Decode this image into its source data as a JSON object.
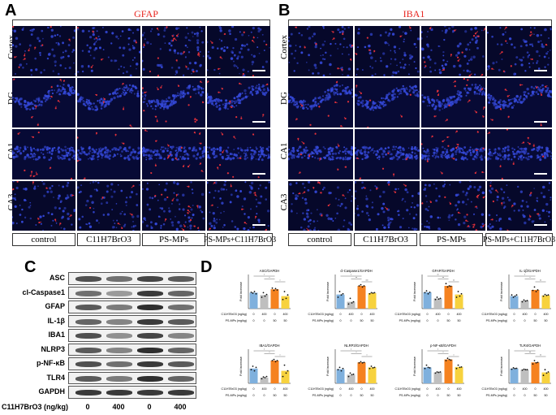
{
  "panels": {
    "a": {
      "letter": "A",
      "stain": "GFAP"
    },
    "b": {
      "letter": "B",
      "stain": "IBA1"
    },
    "c": {
      "letter": "C"
    },
    "d": {
      "letter": "D"
    }
  },
  "regions": [
    "Cortex",
    "DG",
    "CA1",
    "CA3"
  ],
  "groups": [
    "control",
    "C11H7BrO3",
    "PS-MPs",
    "PS-MPs+C11H7BrO3"
  ],
  "colors": {
    "control": "#7fb0dd",
    "c11": "#bfbfbf",
    "psmps": "#f58220",
    "combo": "#f7d23e",
    "nuclei": "#3448d8",
    "stain": "#e0303a"
  },
  "western_blot": {
    "proteins": [
      "ASC",
      "cl-Caspase1",
      "GFAP",
      "IL-1β",
      "IBA1",
      "NLRP3",
      "p-NF-κB",
      "TLR4",
      "GAPDH"
    ],
    "band_intensity": [
      [
        0.75,
        0.6,
        0.8,
        0.7
      ],
      [
        0.6,
        0.4,
        0.85,
        0.65
      ],
      [
        0.7,
        0.55,
        0.9,
        0.6
      ],
      [
        0.65,
        0.5,
        0.85,
        0.7
      ],
      [
        0.75,
        0.45,
        0.8,
        0.5
      ],
      [
        0.7,
        0.5,
        0.9,
        0.65
      ],
      [
        0.75,
        0.6,
        0.85,
        0.7
      ],
      [
        0.7,
        0.55,
        0.9,
        0.65
      ],
      [
        0.85,
        0.85,
        0.85,
        0.85
      ]
    ],
    "dose_rows": [
      {
        "label": "C11H7BrO3 (ng/kg)",
        "values": [
          "0",
          "400",
          "0",
          "400"
        ]
      },
      {
        "label": "PS-MPs (mg/kg)",
        "values": [
          "0",
          "0",
          "50",
          "50"
        ]
      }
    ]
  },
  "chart_data": [
    {
      "type": "bar",
      "title": "ASC/GAPDH",
      "ylabel": "Fold increase",
      "categories": [
        "control",
        "C11H7BrO3",
        "PS-MPs",
        "PS-MPs+C11H7BrO3"
      ],
      "values": [
        0.7,
        0.6,
        0.85,
        0.55
      ],
      "ylim": [
        0,
        1.5
      ],
      "points": [
        [
          0.72,
          0.68,
          0.75,
          0.65
        ],
        [
          0.5,
          0.7,
          0.55,
          0.62
        ],
        [
          0.9,
          0.8,
          0.88,
          0.82
        ],
        [
          0.4,
          0.75,
          0.45,
          0.6
        ]
      ],
      "sig": [
        "*",
        "*",
        "*"
      ]
    },
    {
      "type": "bar",
      "title": "cl-Caspase1/GAPDH",
      "ylabel": "Fold increase",
      "categories": [
        "control",
        "C11H7BrO3",
        "PS-MPs",
        "PS-MPs+C11H7BrO3"
      ],
      "values": [
        0.62,
        0.3,
        1.0,
        0.68
      ],
      "ylim": [
        0,
        1.5
      ],
      "points": [
        [
          0.5,
          0.75,
          0.6,
          0.65
        ],
        [
          0.2,
          0.45,
          0.25,
          0.3
        ],
        [
          1.0,
          1.05,
          0.95,
          1.0
        ],
        [
          0.65,
          0.7,
          0.68,
          0.7
        ]
      ],
      "sig": [
        "*",
        "**",
        "***"
      ]
    },
    {
      "type": "bar",
      "title": "GFAP/GAPDH",
      "ylabel": "Fold increase",
      "categories": [
        "control",
        "C11H7BrO3",
        "PS-MPs",
        "PS-MPs+C11H7BrO3"
      ],
      "values": [
        0.72,
        0.45,
        1.0,
        0.62
      ],
      "ylim": [
        0,
        1.5
      ],
      "points": [
        [
          0.7,
          0.78,
          0.65,
          0.72
        ],
        [
          0.4,
          0.5,
          0.42,
          0.45
        ],
        [
          1.1,
          0.95,
          1.0,
          0.98
        ],
        [
          0.5,
          0.75,
          0.55,
          0.65
        ]
      ],
      "sig": [
        "**",
        "**",
        "**"
      ]
    },
    {
      "type": "bar",
      "title": "IL-1β/GAPDH",
      "ylabel": "Fold increase",
      "categories": [
        "control",
        "C11H7BrO3",
        "PS-MPs",
        "PS-MPs+C11H7BrO3"
      ],
      "values": [
        0.55,
        0.35,
        0.82,
        0.58
      ],
      "ylim": [
        0,
        1.5
      ],
      "points": [
        [
          0.6,
          0.5,
          0.55,
          0.6
        ],
        [
          0.3,
          0.38,
          0.33,
          0.35
        ],
        [
          0.8,
          0.95,
          0.75,
          0.82
        ],
        [
          0.55,
          0.62,
          0.58,
          0.6
        ]
      ],
      "sig": [
        "*",
        "*",
        "**"
      ]
    },
    {
      "type": "bar",
      "title": "IBA1/GAPDH",
      "ylabel": "Fold increase",
      "categories": [
        "control",
        "C11H7BrO3",
        "PS-MPs",
        "PS-MPs+C11H7BrO3"
      ],
      "values": [
        0.65,
        0.25,
        1.0,
        0.55
      ],
      "ylim": [
        0,
        1.5
      ],
      "points": [
        [
          0.6,
          0.75,
          0.55,
          0.7
        ],
        [
          0.2,
          0.28,
          0.25,
          0.3
        ],
        [
          1.0,
          1.05,
          0.95,
          1.0
        ],
        [
          0.3,
          0.8,
          0.45,
          0.55
        ]
      ],
      "sig": [
        "*",
        "*",
        "*"
      ]
    },
    {
      "type": "bar",
      "title": "NLRP3/GAPDH",
      "ylabel": "Fold increase",
      "categories": [
        "control",
        "C11H7BrO3",
        "PS-MPs",
        "PS-MPs+C11H7BrO3"
      ],
      "values": [
        0.62,
        0.38,
        0.92,
        0.7
      ],
      "ylim": [
        0,
        1.5
      ],
      "points": [
        [
          0.6,
          0.7,
          0.55,
          0.65
        ],
        [
          0.3,
          0.45,
          0.38,
          0.4
        ],
        [
          0.9,
          0.95,
          0.9,
          0.92
        ],
        [
          0.65,
          0.75,
          0.68,
          0.7
        ]
      ],
      "sig": [
        "*",
        "*",
        "*"
      ]
    },
    {
      "type": "bar",
      "title": "p-NF-κB/GAPDH",
      "ylabel": "Fold increase",
      "categories": [
        "control",
        "C11H7BrO3",
        "PS-MPs",
        "PS-MPs+C11H7BrO3"
      ],
      "values": [
        0.7,
        0.48,
        1.05,
        0.72
      ],
      "ylim": [
        0,
        1.5
      ],
      "points": [
        [
          0.65,
          0.8,
          0.7,
          0.68
        ],
        [
          0.45,
          0.5,
          0.48,
          0.5
        ],
        [
          1.0,
          1.1,
          1.05,
          1.02
        ],
        [
          0.65,
          0.8,
          0.7,
          0.72
        ]
      ],
      "sig": [
        "*",
        "*",
        "*"
      ]
    },
    {
      "type": "bar",
      "title": "TLR4/GAPDH",
      "ylabel": "Fold increase",
      "categories": [
        "control",
        "C11H7BrO3",
        "PS-MPs",
        "PS-MPs+C11H7BrO3"
      ],
      "values": [
        0.65,
        0.6,
        0.92,
        0.48
      ],
      "ylim": [
        0,
        1.5
      ],
      "points": [
        [
          0.62,
          0.68,
          0.65,
          0.66
        ],
        [
          0.58,
          0.62,
          0.6,
          0.6
        ],
        [
          0.85,
          1.0,
          0.9,
          0.92
        ],
        [
          0.35,
          0.6,
          0.45,
          0.5
        ]
      ],
      "sig": [
        "*",
        "**",
        "**"
      ]
    }
  ],
  "chart_footer": {
    "rows": [
      {
        "label": "C11H7BrO3 (ng/kg)",
        "values": [
          "0",
          "400",
          "0",
          "400"
        ]
      },
      {
        "label": "PS-MPs (mg/kg)",
        "values": [
          "0",
          "0",
          "50",
          "50"
        ]
      }
    ]
  }
}
